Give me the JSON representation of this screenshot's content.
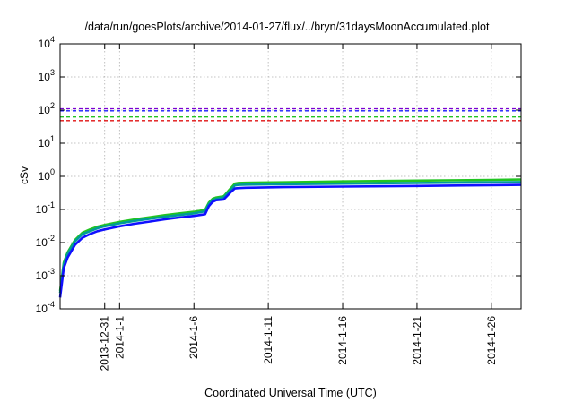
{
  "chart_data": {
    "type": "line",
    "title": "/data/run/goesPlots/archive/2014-01-27/flux/../bryn/31daysMoonAccumulated.plot",
    "xlabel": "Coordinated Universal Time (UTC)",
    "ylabel": "cSv",
    "yscale": "log",
    "ylim": [
      0.0001,
      10000
    ],
    "xlim": [
      "2013-12-28",
      "2014-01-28"
    ],
    "grid": true,
    "y_ticks": [
      {
        "value": 0.0001,
        "mantissa": "10",
        "exp": "-4"
      },
      {
        "value": 0.001,
        "mantissa": "10",
        "exp": "-3"
      },
      {
        "value": 0.01,
        "mantissa": "10",
        "exp": "-2"
      },
      {
        "value": 0.1,
        "mantissa": "10",
        "exp": "-1"
      },
      {
        "value": 1,
        "mantissa": "10",
        "exp": "0"
      },
      {
        "value": 10,
        "mantissa": "10",
        "exp": "1"
      },
      {
        "value": 100,
        "mantissa": "10",
        "exp": "2"
      },
      {
        "value": 1000,
        "mantissa": "10",
        "exp": "3"
      },
      {
        "value": 10000,
        "mantissa": "10",
        "exp": "4"
      }
    ],
    "x_ticks": [
      {
        "date": "2013-12-31",
        "label": "2013-12-31"
      },
      {
        "date": "2014-01-01",
        "label": "2014-1-1"
      },
      {
        "date": "2014-01-06",
        "label": "2014-1-6"
      },
      {
        "date": "2014-01-11",
        "label": "2014-1-11"
      },
      {
        "date": "2014-01-16",
        "label": "2014-1-16"
      },
      {
        "date": "2014-01-21",
        "label": "2014-1-21"
      },
      {
        "date": "2014-01-26",
        "label": "2014-1-26"
      }
    ],
    "reference_lines": [
      {
        "value": 110,
        "color": "#7a00d4",
        "style": "dashed"
      },
      {
        "value": 95,
        "color": "#1a1aff",
        "style": "dashed"
      },
      {
        "value": 62,
        "color": "#22c422",
        "style": "dashed"
      },
      {
        "value": 48,
        "color": "#e01010",
        "style": "dashed"
      }
    ],
    "series": [
      {
        "color": "#22c422",
        "x": [
          "2013-12-28T00:00",
          "2013-12-28T06:00",
          "2013-12-28T12:00",
          "2013-12-29T00:00",
          "2013-12-29T12:00",
          "2013-12-30T00:00",
          "2013-12-30T12:00",
          "2013-12-31T00:00",
          "2014-01-01T00:00",
          "2014-01-02T00:00",
          "2014-01-03T00:00",
          "2014-01-04T00:00",
          "2014-01-05T00:00",
          "2014-01-06T00:00",
          "2014-01-06T18:00",
          "2014-01-07T00:00",
          "2014-01-07T06:00",
          "2014-01-07T12:00",
          "2014-01-08T00:00",
          "2014-01-08T12:00",
          "2014-01-08T18:00",
          "2014-01-09T00:00",
          "2014-01-09T12:00",
          "2014-01-10T00:00",
          "2014-01-12T00:00",
          "2014-01-16T00:00",
          "2014-01-21T00:00",
          "2014-01-26T00:00",
          "2014-01-28T00:00"
        ],
        "y": [
          0.00035,
          0.0025,
          0.005,
          0.012,
          0.02,
          0.025,
          0.03,
          0.034,
          0.042,
          0.05,
          0.058,
          0.067,
          0.076,
          0.085,
          0.097,
          0.16,
          0.21,
          0.23,
          0.25,
          0.45,
          0.6,
          0.63,
          0.64,
          0.645,
          0.66,
          0.7,
          0.74,
          0.78,
          0.8
        ]
      },
      {
        "color": "#009a9a",
        "x": [
          "2013-12-28T00:00",
          "2013-12-28T06:00",
          "2013-12-28T12:00",
          "2013-12-29T00:00",
          "2013-12-29T12:00",
          "2013-12-30T00:00",
          "2013-12-30T12:00",
          "2013-12-31T00:00",
          "2014-01-01T00:00",
          "2014-01-02T00:00",
          "2014-01-03T00:00",
          "2014-01-04T00:00",
          "2014-01-05T00:00",
          "2014-01-06T00:00",
          "2014-01-06T18:00",
          "2014-01-07T00:00",
          "2014-01-07T06:00",
          "2014-01-07T12:00",
          "2014-01-08T00:00",
          "2014-01-08T12:00",
          "2014-01-08T18:00",
          "2014-01-09T00:00",
          "2014-01-09T12:00",
          "2014-01-10T00:00",
          "2014-01-12T00:00",
          "2014-01-16T00:00",
          "2014-01-21T00:00",
          "2014-01-26T00:00",
          "2014-01-28T00:00"
        ],
        "y": [
          0.0003,
          0.0022,
          0.0045,
          0.011,
          0.018,
          0.022,
          0.027,
          0.031,
          0.038,
          0.045,
          0.052,
          0.06,
          0.068,
          0.076,
          0.088,
          0.145,
          0.19,
          0.21,
          0.23,
          0.4,
          0.53,
          0.55,
          0.56,
          0.565,
          0.58,
          0.6,
          0.63,
          0.66,
          0.67
        ]
      },
      {
        "color": "#1010ff",
        "x": [
          "2013-12-28T00:00",
          "2013-12-28T06:00",
          "2013-12-28T12:00",
          "2013-12-29T00:00",
          "2013-12-29T12:00",
          "2013-12-30T00:00",
          "2013-12-30T12:00",
          "2013-12-31T00:00",
          "2014-01-01T00:00",
          "2014-01-02T00:00",
          "2014-01-03T00:00",
          "2014-01-04T00:00",
          "2014-01-05T00:00",
          "2014-01-06T00:00",
          "2014-01-06T18:00",
          "2014-01-07T00:00",
          "2014-01-07T06:00",
          "2014-01-07T12:00",
          "2014-01-08T00:00",
          "2014-01-08T12:00",
          "2014-01-08T18:00",
          "2014-01-09T00:00",
          "2014-01-09T12:00",
          "2014-01-10T00:00",
          "2014-01-12T00:00",
          "2014-01-16T00:00",
          "2014-01-21T00:00",
          "2014-01-26T00:00",
          "2014-01-28T00:00"
        ],
        "y": [
          0.00022,
          0.0017,
          0.0035,
          0.0085,
          0.014,
          0.018,
          0.022,
          0.025,
          0.031,
          0.037,
          0.043,
          0.05,
          0.057,
          0.064,
          0.072,
          0.125,
          0.17,
          0.19,
          0.2,
          0.34,
          0.43,
          0.44,
          0.45,
          0.455,
          0.47,
          0.49,
          0.51,
          0.54,
          0.55
        ]
      }
    ]
  }
}
